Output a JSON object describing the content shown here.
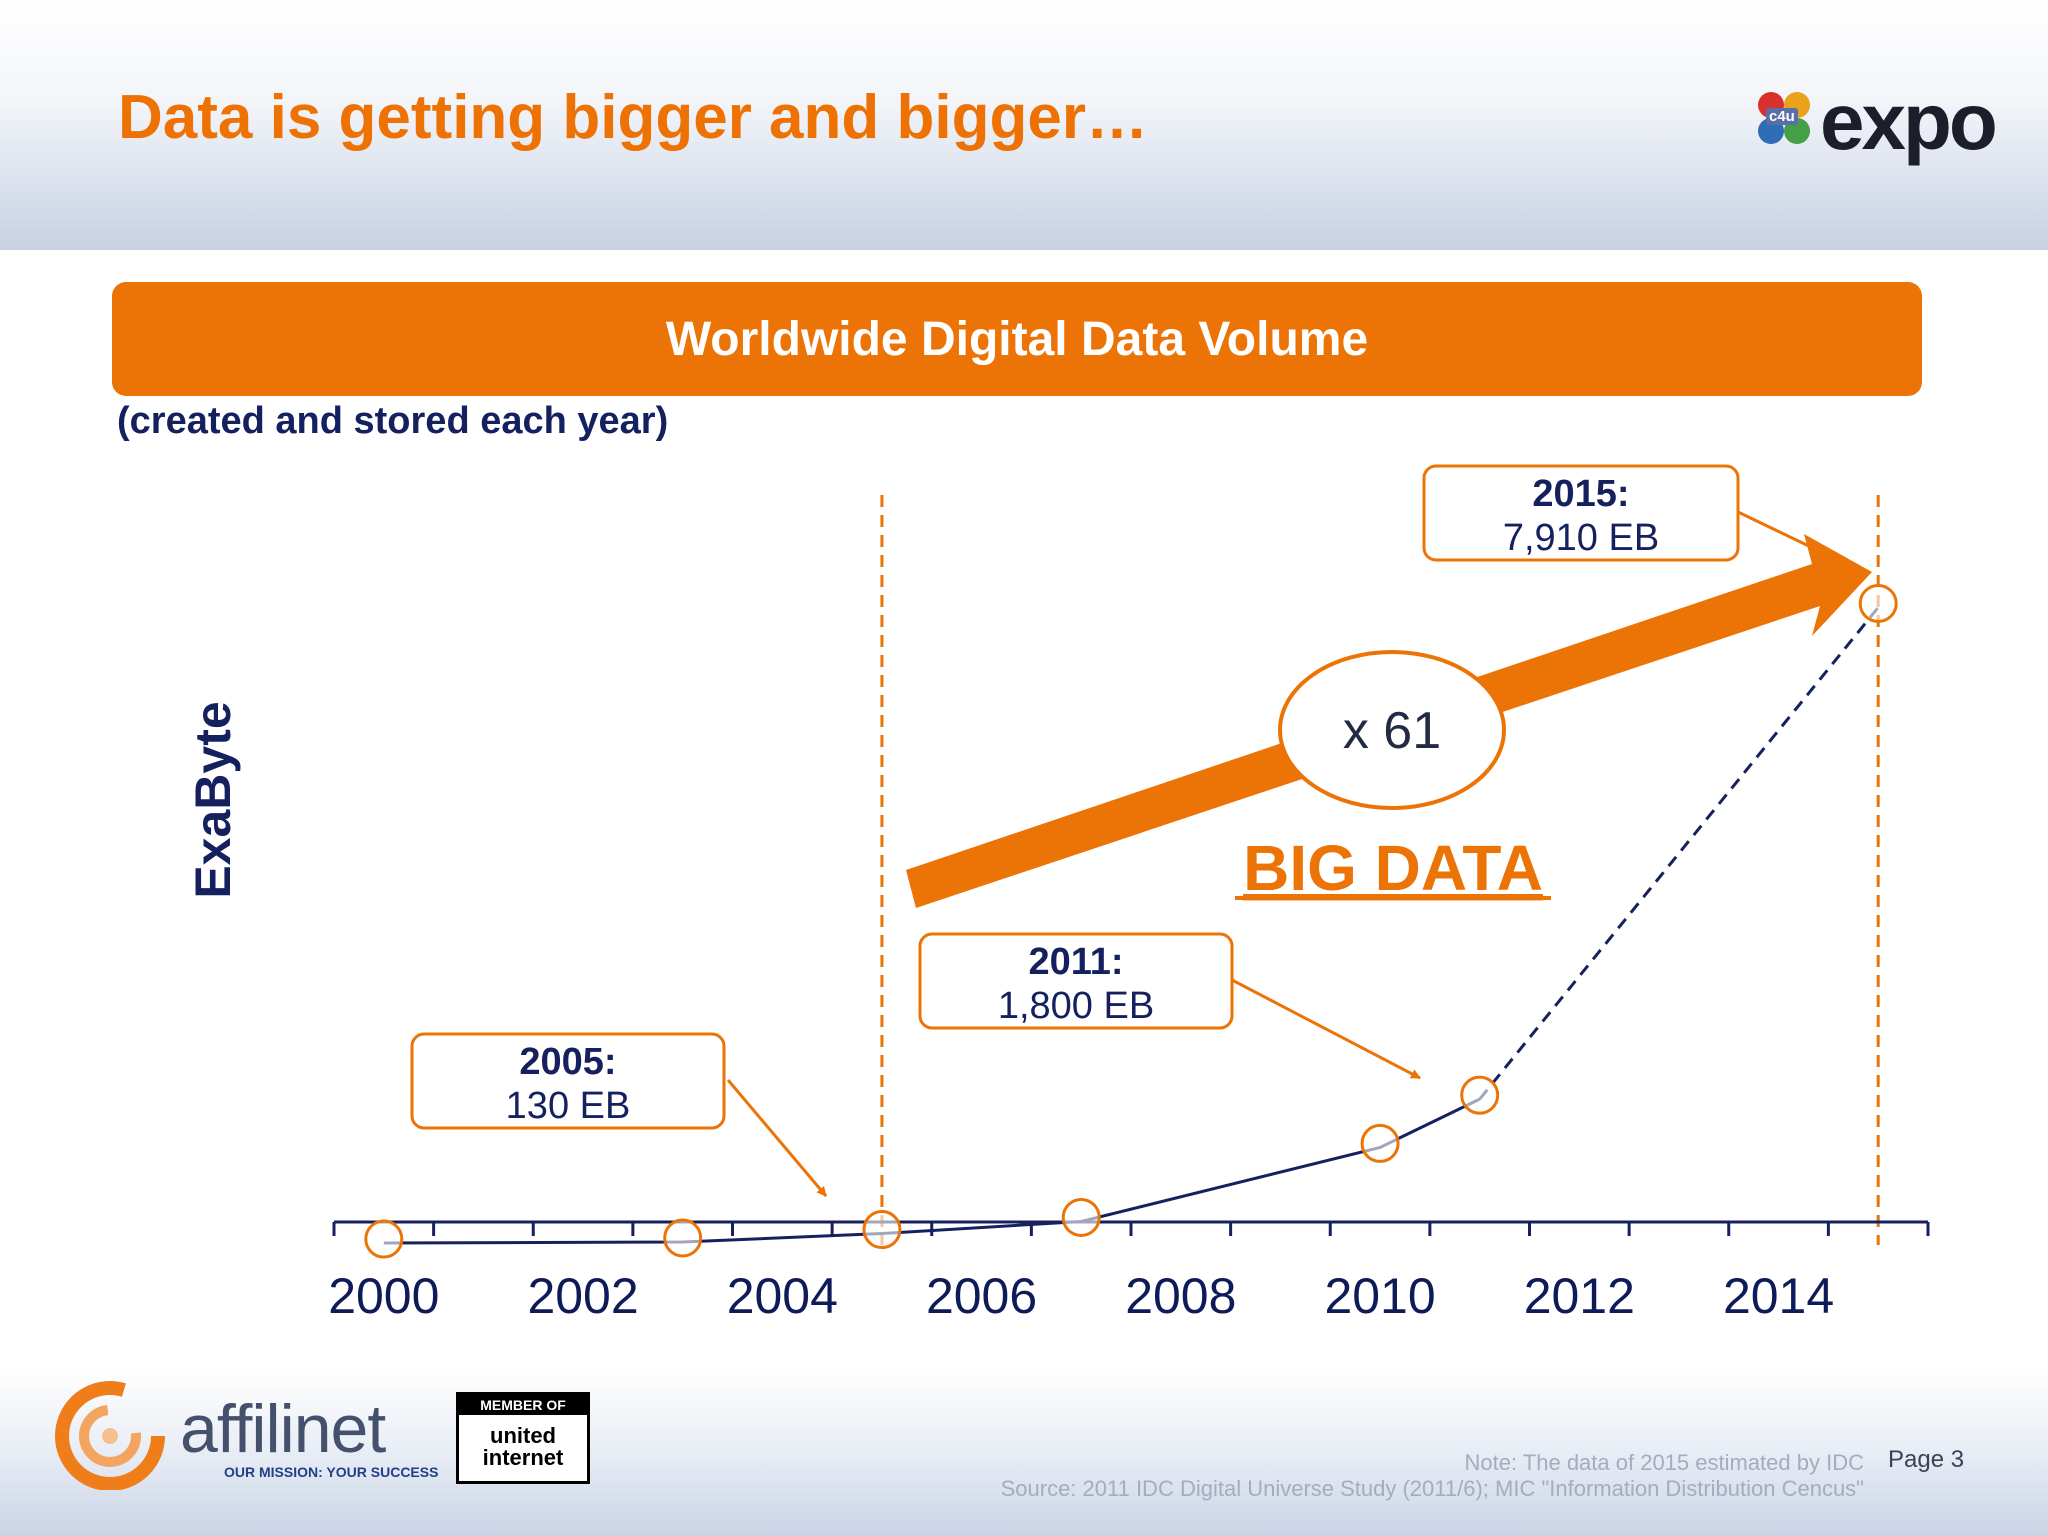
{
  "slide": {
    "title": "Data is getting bigger and bigger…",
    "page": "Page 3",
    "note": "Note: The data of 2015 estimated by IDC",
    "source": "Source: 2011 IDC Digital Universe Study (2011/6); MIC \"Information Distribution Cencus\""
  },
  "logos": {
    "expo_word": "expo",
    "expo_badge": "c4u",
    "affilinet_word": "affilinet",
    "affilinet_tagline": "OUR MISSION: YOUR SUCCESS",
    "member_top": "MEMBER OF",
    "member_line1": "united",
    "member_line2": "internet"
  },
  "colors": {
    "accent": "#ec7306",
    "navy": "#14215e",
    "banner_text": "#ffffff"
  },
  "chart_data": {
    "type": "line",
    "title": "Worldwide Digital Data Volume",
    "subtitle": "(created and stored each year)",
    "ylabel": "ExaByte",
    "xlabel": "",
    "x_ticks": [
      "2000",
      "2002",
      "2004",
      "2006",
      "2008",
      "2010",
      "2012",
      "2014"
    ],
    "xlim": [
      1999.5,
      2015.5
    ],
    "ylim": [
      0,
      8500
    ],
    "series": [
      {
        "x": [
          2000,
          2003,
          2005,
          2007,
          2010,
          2011
        ],
        "y": [
          12,
          25,
          130,
          280,
          1200,
          1800
        ],
        "style": "solid"
      },
      {
        "x": [
          2011,
          2015
        ],
        "y": [
          1800,
          7910
        ],
        "style": "dashed"
      }
    ],
    "markers": {
      "x": [
        2000,
        2003,
        2005,
        2007,
        2010,
        2011,
        2015
      ],
      "y": [
        12,
        25,
        130,
        280,
        1200,
        1800,
        7910
      ]
    },
    "vertical_lines": [
      2005,
      2015
    ],
    "callouts": [
      {
        "label": "2005:",
        "value": "130 EB",
        "year": 2005,
        "y": 130
      },
      {
        "label": "2011:",
        "value": "1,800 EB",
        "year": 2011,
        "y": 1800
      },
      {
        "label": "2015:",
        "value": "7,910 EB",
        "year": 2015,
        "y": 7910
      }
    ],
    "growth_label": "x 61",
    "highlight_label": "BIG DATA",
    "grid": false
  }
}
